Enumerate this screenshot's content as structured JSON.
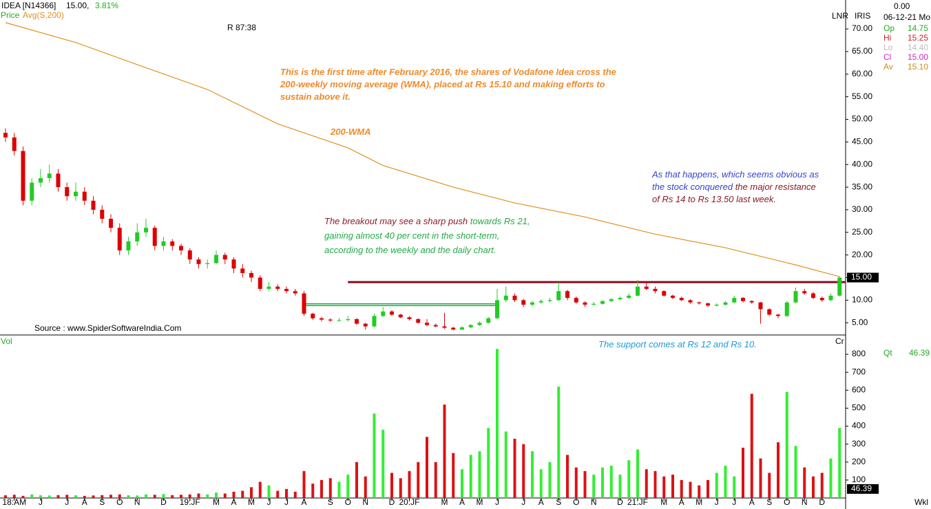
{
  "chart_data": {
    "type": "candlestick",
    "header": {
      "symbol": "IDEA [N14366]",
      "last": "15.00,",
      "change": "3.81%"
    },
    "legend": [
      {
        "name": "Price",
        "color": "#22aa22"
      },
      {
        "name": "Avg(S,200)",
        "color": "#e09020"
      }
    ],
    "cursor": "R 87:38",
    "source": "Source : www.SpiderSoftwareIndia.Com",
    "toolbar": [
      "LNR",
      "IRIS"
    ],
    "info": {
      "value": "0.00",
      "date": "06-12-21 Mo",
      "rows": [
        {
          "label": "Op",
          "value": "14.75",
          "color": "#22aa22"
        },
        {
          "label": "Hi",
          "value": "15.25",
          "color": "#cc2222"
        },
        {
          "label": "Lo",
          "value": "14.40",
          "color": "#bbbbbb"
        },
        {
          "label": "Cl",
          "value": "15.00",
          "color": "#cc22cc"
        },
        {
          "label": "Av",
          "value": "15.10",
          "color": "#d08a10"
        }
      ]
    },
    "volume_label": "Vol",
    "cr_label": "Cr",
    "qt_label": "Qt",
    "qt_value": "46.39",
    "period": "Wkl",
    "last_price": {
      "value": 15,
      "label": "15.00"
    },
    "last_volume": {
      "value": 46.39,
      "label": "46.39"
    },
    "up_color": "#22cc22",
    "down_color": "#dd0000",
    "ylim": [
      2.3,
      76.4
    ],
    "yticks": [
      {
        "value": 70,
        "label": "70.00"
      },
      {
        "value": 65,
        "label": "65.00"
      },
      {
        "value": 60,
        "label": "60.00"
      },
      {
        "value": 55,
        "label": "55.00"
      },
      {
        "value": 50,
        "label": "50.00"
      },
      {
        "value": 45,
        "label": "45.00"
      },
      {
        "value": 40,
        "label": "40.00"
      },
      {
        "value": 35,
        "label": "35.00"
      },
      {
        "value": 30,
        "label": "30.00"
      },
      {
        "value": 25,
        "label": "25.00"
      },
      {
        "value": 20,
        "label": "20.00"
      },
      {
        "value": 15,
        "label": "15.00"
      },
      {
        "value": 10,
        "label": "10.00"
      },
      {
        "value": 5,
        "label": "5.00"
      }
    ],
    "volume_ylim": [
      0,
      896
    ],
    "volume_yticks": [
      100,
      200,
      300,
      400,
      500,
      600,
      700,
      800
    ],
    "categories": [
      null,
      "18:AM",
      null,
      null,
      "J",
      null,
      null,
      "J",
      null,
      "A",
      null,
      "S",
      null,
      "O",
      null,
      "N",
      null,
      null,
      "D",
      null,
      null,
      "19:JF",
      null,
      null,
      "M",
      null,
      "A",
      null,
      "M",
      null,
      "J",
      null,
      "J",
      null,
      "A",
      null,
      null,
      "S",
      null,
      "O",
      null,
      "N",
      null,
      null,
      "D",
      null,
      "20:JF",
      null,
      null,
      null,
      "M",
      null,
      "A",
      null,
      "M",
      null,
      "J",
      null,
      null,
      "J",
      null,
      "A",
      null,
      "S",
      null,
      "O",
      null,
      "N",
      null,
      null,
      "D",
      null,
      "21:JF",
      null,
      null,
      "M",
      null,
      "A",
      null,
      "M",
      null,
      "J",
      null,
      "J",
      null,
      "A",
      null,
      "S",
      null,
      "O",
      null,
      "N",
      null,
      "D",
      null,
      null
    ],
    "candles": [
      [
        47,
        48,
        45,
        46
      ],
      [
        46,
        47,
        42,
        43
      ],
      [
        43,
        44,
        31,
        32
      ],
      [
        32,
        37,
        31,
        36
      ],
      [
        36,
        39,
        35,
        37
      ],
      [
        37,
        40,
        36,
        38
      ],
      [
        38,
        39,
        34,
        35
      ],
      [
        35,
        36,
        32,
        33
      ],
      [
        33,
        36,
        32,
        34
      ],
      [
        34,
        35,
        31,
        32
      ],
      [
        32,
        33,
        29,
        30
      ],
      [
        30,
        31,
        27,
        28
      ],
      [
        28,
        29,
        25,
        26
      ],
      [
        26,
        27,
        20,
        21
      ],
      [
        21,
        24,
        20,
        23
      ],
      [
        23,
        27,
        22,
        25
      ],
      [
        25,
        28,
        24,
        26
      ],
      [
        26,
        26.5,
        21,
        22
      ],
      [
        22,
        24,
        21,
        23
      ],
      [
        23,
        23.5,
        21,
        22
      ],
      [
        22,
        22.5,
        20,
        21
      ],
      [
        21,
        21.5,
        18,
        19
      ],
      [
        19,
        19.5,
        17,
        18
      ],
      [
        18,
        19,
        17,
        18.2
      ],
      [
        18.2,
        21,
        18,
        20
      ],
      [
        20,
        20.5,
        18,
        19
      ],
      [
        19,
        19.5,
        16,
        17
      ],
      [
        17,
        18,
        15,
        16
      ],
      [
        16,
        16.5,
        14,
        15
      ],
      [
        15,
        15.5,
        12,
        12.5
      ],
      [
        12.5,
        14,
        12,
        13
      ],
      [
        13,
        13.5,
        12,
        12.5
      ],
      [
        12.5,
        13,
        11.5,
        12
      ],
      [
        12,
        12.5,
        11,
        11.5
      ],
      [
        11.5,
        12,
        6.5,
        7
      ],
      [
        7,
        7.2,
        5.6,
        6
      ],
      [
        6,
        6.3,
        5.3,
        5.7
      ],
      [
        5.7,
        6,
        5.2,
        5.5
      ],
      [
        5.5,
        6,
        5.2,
        5.6
      ],
      [
        5.6,
        6.5,
        5.3,
        5.8
      ],
      [
        5.8,
        6,
        4.5,
        4.8
      ],
      [
        4.8,
        5,
        3.5,
        4.2
      ],
      [
        4.2,
        7,
        4,
        6.5
      ],
      [
        6.5,
        8.5,
        6.3,
        7.5
      ],
      [
        7.5,
        7.8,
        6.5,
        6.8
      ],
      [
        6.8,
        7,
        6,
        6.2
      ],
      [
        6.2,
        6.5,
        5.5,
        5.8
      ],
      [
        5.8,
        6,
        4.8,
        5
      ],
      [
        5,
        5.8,
        4.2,
        4.5
      ],
      [
        4.5,
        4.8,
        4,
        4.2
      ],
      [
        4.2,
        7.2,
        3.6,
        3.9
      ],
      [
        3.9,
        4.1,
        3.3,
        3.5
      ],
      [
        3.5,
        4.2,
        3.4,
        4
      ],
      [
        4,
        4.7,
        3.8,
        4.5
      ],
      [
        4.5,
        5.3,
        4.3,
        5
      ],
      [
        5,
        6.3,
        4.8,
        6
      ],
      [
        6,
        12.5,
        5.8,
        10
      ],
      [
        10,
        13,
        9.5,
        11
      ],
      [
        11,
        11.5,
        9.6,
        10
      ],
      [
        10,
        10.3,
        8.5,
        9
      ],
      [
        9,
        9.8,
        8.6,
        9.5
      ],
      [
        9.5,
        10.2,
        9.2,
        9.8
      ],
      [
        9.8,
        10.5,
        9.5,
        10
      ],
      [
        10,
        14,
        9.8,
        12
      ],
      [
        12,
        12.3,
        10,
        10.5
      ],
      [
        10.5,
        10.8,
        9.2,
        9.5
      ],
      [
        9.5,
        9.7,
        8.5,
        9
      ],
      [
        9,
        9.6,
        8.8,
        9.2
      ],
      [
        9.2,
        10,
        9,
        9.8
      ],
      [
        9.8,
        10.5,
        9.6,
        10.2
      ],
      [
        10.2,
        10.8,
        10,
        10.5
      ],
      [
        10.5,
        11.5,
        10.3,
        11
      ],
      [
        11,
        14.5,
        10.8,
        13
      ],
      [
        13,
        13.8,
        12.2,
        12.5
      ],
      [
        12.5,
        13,
        11.5,
        12
      ],
      [
        12,
        12.2,
        10.8,
        11
      ],
      [
        11,
        11.2,
        10.2,
        10.5
      ],
      [
        10.5,
        10.8,
        9.8,
        10
      ],
      [
        10,
        10.2,
        9.2,
        9.5
      ],
      [
        9.5,
        9.7,
        9,
        9.3
      ],
      [
        9.3,
        9.5,
        8.5,
        8.8
      ],
      [
        8.8,
        9.3,
        8.6,
        9
      ],
      [
        9,
        9.8,
        8.8,
        9.5
      ],
      [
        9.5,
        11,
        9.3,
        10.5
      ],
      [
        10.5,
        10.7,
        9.5,
        9.8
      ],
      [
        9.8,
        10,
        9.2,
        9.5
      ],
      [
        9.5,
        9.6,
        4.8,
        8
      ],
      [
        8,
        8.2,
        6.5,
        6.8
      ],
      [
        6.8,
        7,
        6,
        6.5
      ],
      [
        6.5,
        9.8,
        6.3,
        9.5
      ],
      [
        9.5,
        12.8,
        9.3,
        12
      ],
      [
        12,
        12.5,
        11.2,
        11.5
      ],
      [
        11.5,
        11.8,
        10.2,
        10.5
      ],
      [
        10.5,
        10.8,
        9.6,
        10
      ],
      [
        10,
        11.5,
        9.8,
        11
      ],
      [
        11,
        15.25,
        10.8,
        15
      ]
    ],
    "volume": [
      15,
      18,
      12,
      20,
      15,
      14,
      16,
      18,
      15,
      12,
      14,
      16,
      18,
      20,
      15,
      14,
      20,
      18,
      22,
      16,
      18,
      20,
      25,
      20,
      30,
      25,
      35,
      40,
      60,
      90,
      70,
      40,
      50,
      35,
      150,
      80,
      100,
      110,
      90,
      130,
      200,
      120,
      470,
      380,
      140,
      110,
      150,
      200,
      340,
      200,
      520,
      250,
      160,
      240,
      260,
      390,
      830,
      370,
      330,
      300,
      260,
      160,
      200,
      620,
      240,
      170,
      150,
      130,
      170,
      180,
      130,
      210,
      270,
      160,
      150,
      120,
      130,
      100,
      90,
      70,
      100,
      140,
      180,
      120,
      280,
      580,
      220,
      140,
      310,
      590,
      290,
      170,
      120,
      140,
      220,
      390
    ],
    "ma": {
      "color": "#e09020",
      "x": [
        0,
        8,
        15,
        23,
        31,
        39,
        43,
        51,
        58,
        66,
        74,
        82,
        90,
        95
      ],
      "values": [
        71.4,
        67,
        62.1,
        56.6,
        49,
        43.7,
        39.8,
        35,
        31.5,
        28.4,
        24.6,
        21.6,
        17.8,
        15.2
      ]
    },
    "resistance": {
      "value": 14,
      "x": [
        39,
        95
      ],
      "color": "#8b0a1a"
    },
    "range_box": {
      "top": 9.2,
      "bottom": 8.8,
      "x": [
        34,
        56
      ],
      "color": "#22aa44"
    },
    "notes": [
      {
        "lines": [
          [
            {
              "text": "This is the first time after February 2016, the shares of Vodafone Idea cross the",
              "color": "#f0892a"
            }
          ],
          [
            {
              "text": "200-weekly moving average (WMA), placed at Rs 15.10 and making efforts to",
              "color": "#f0892a"
            }
          ],
          [
            {
              "text": "sustain above it.",
              "color": "#f0892a"
            }
          ]
        ]
      },
      {
        "lines": [
          [
            {
              "text": "200-WMA",
              "color": "#f0892a"
            }
          ]
        ]
      },
      {
        "lines": [
          [
            {
              "text": "The breakout may see a sharp push",
              "color": "#8b1a2a"
            },
            {
              "text": " towards Rs 21,",
              "color": "#22aa44"
            }
          ],
          [
            {
              "text": "gaining almost 40 per cent in the short-term,",
              "color": "#22aa44"
            }
          ],
          [
            {
              "text": "according to the weekly and the daily chart.",
              "color": "#22aa44"
            }
          ]
        ]
      },
      {
        "lines": [
          [
            {
              "text": "As that happens, which seems obvious as",
              "color": "#3344cc"
            }
          ],
          [
            {
              "text": "the stock conquered",
              "color": "#3344cc"
            },
            {
              "text": " the major resistance",
              "color": "#8b1a2a"
            }
          ],
          [
            {
              "text": "of Rs 14 to Rs 13.50 last week.",
              "color": "#8b1a2a"
            }
          ]
        ]
      },
      {
        "lines": [
          [
            {
              "text": "The support comes at Rs 12 and Rs 10.",
              "color": "#1a9ad6"
            }
          ]
        ]
      }
    ]
  }
}
